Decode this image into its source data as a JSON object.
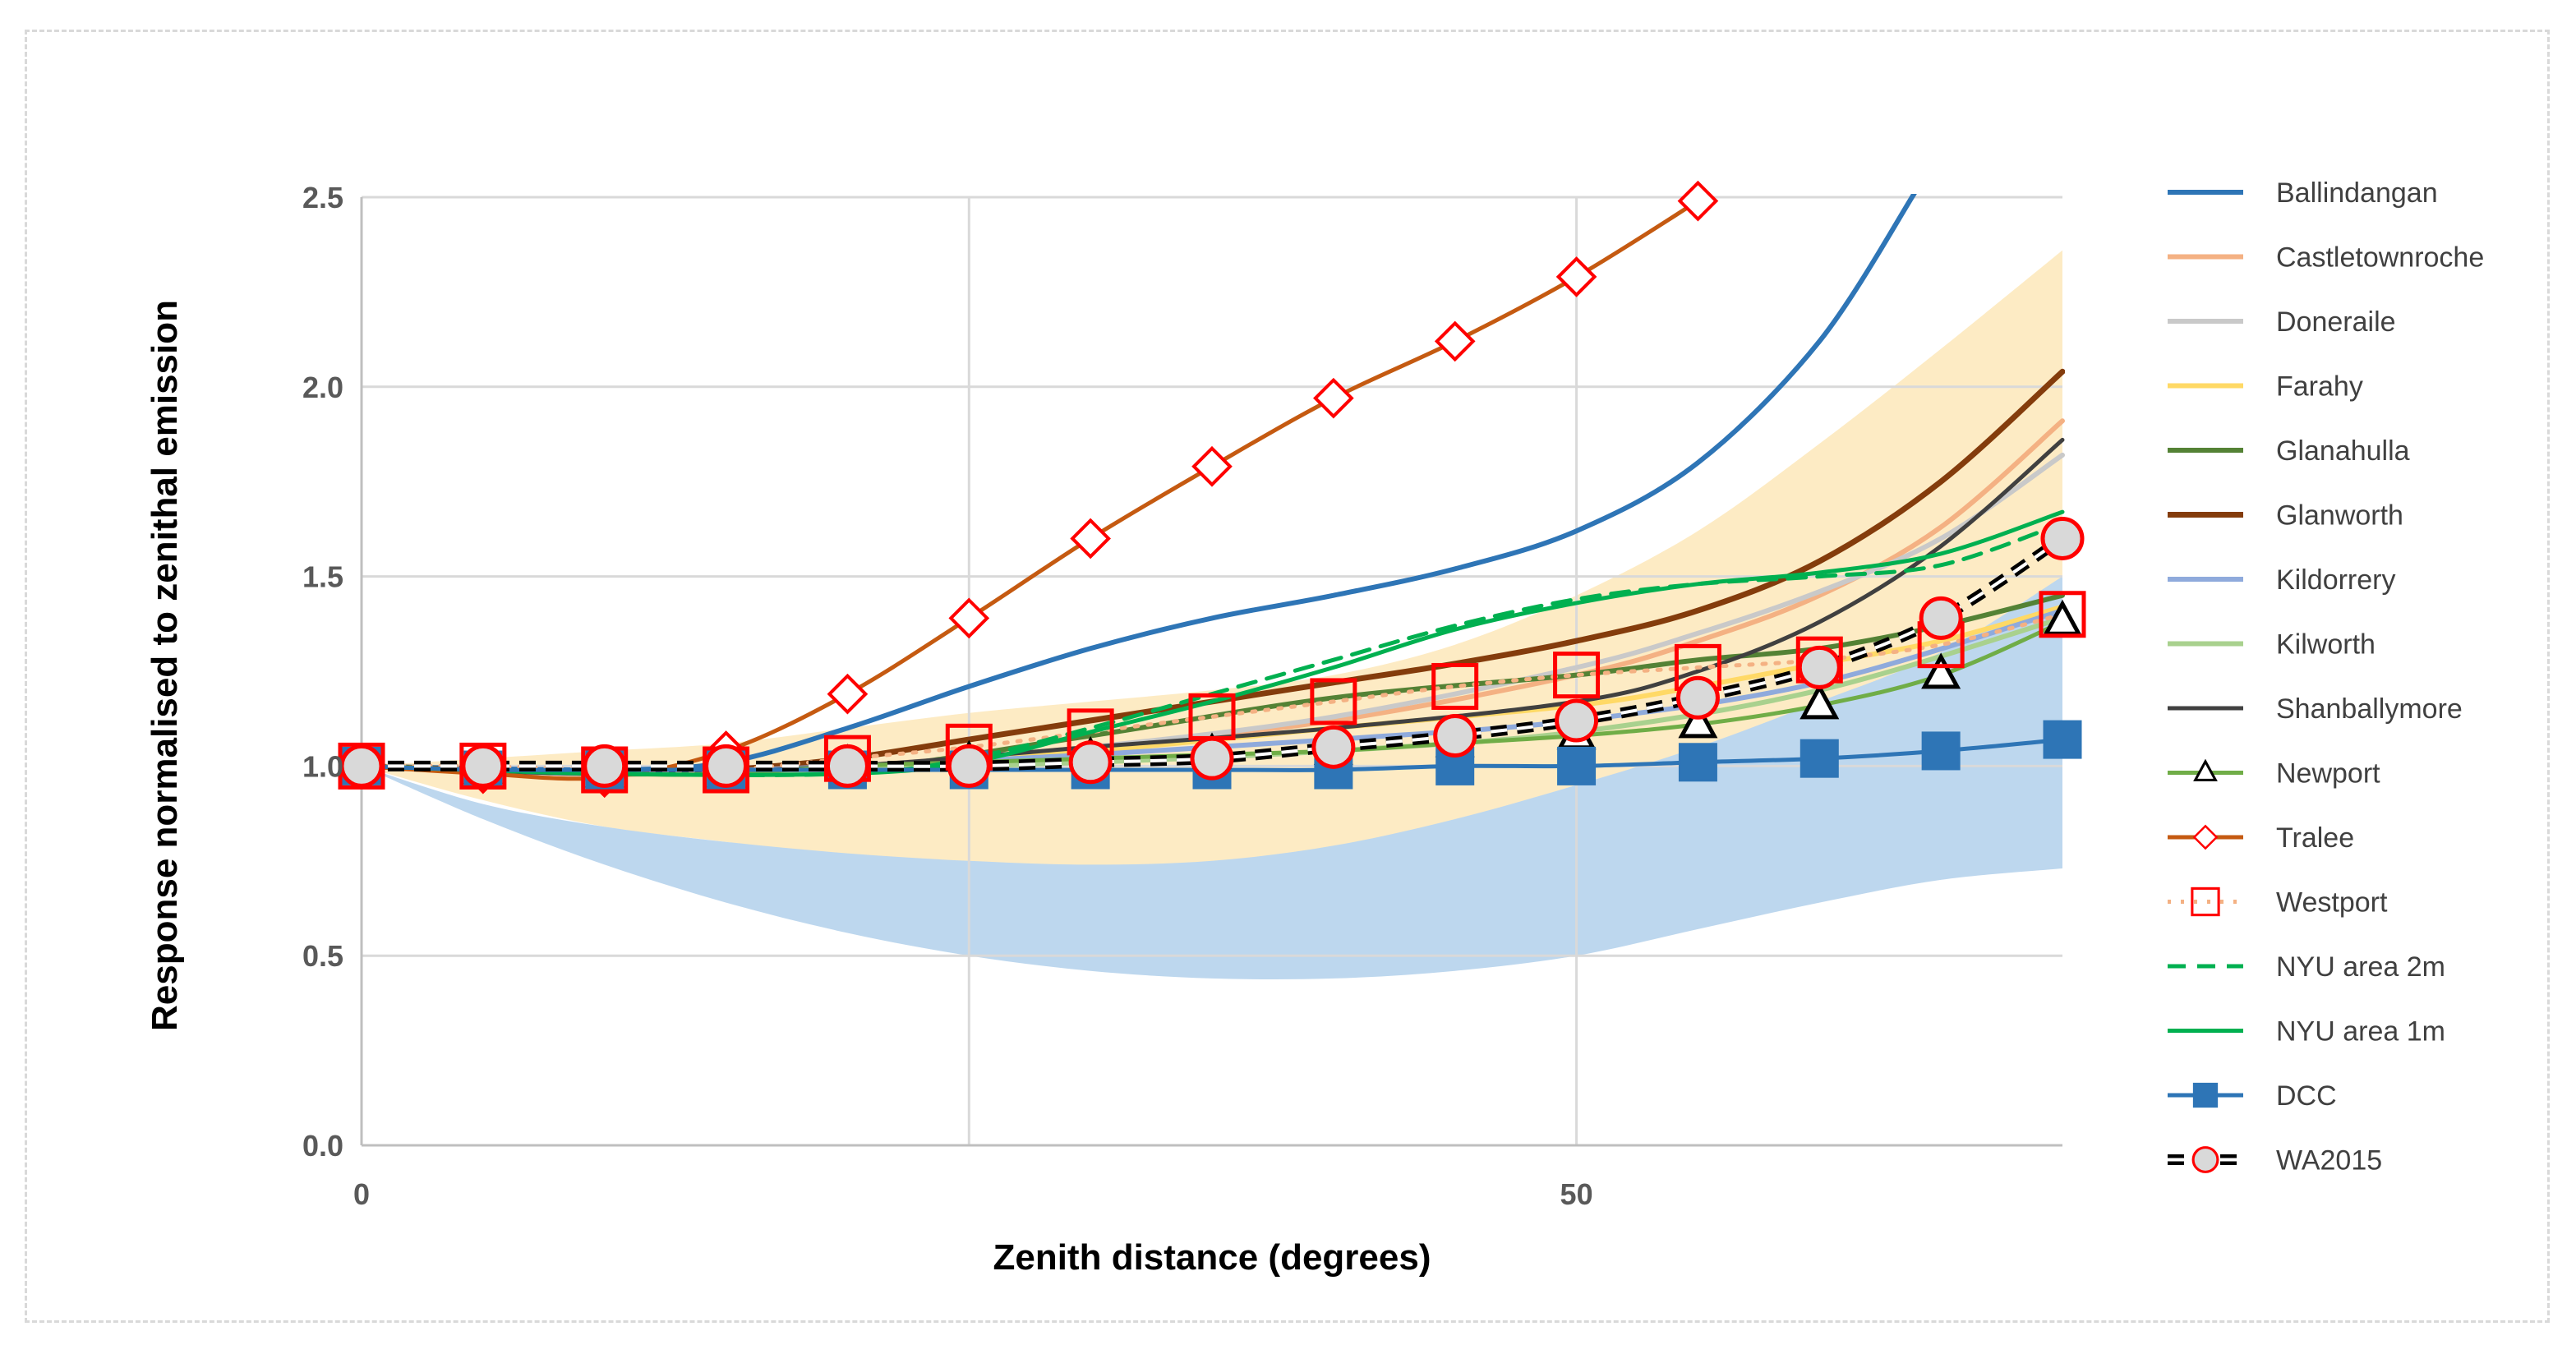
{
  "chart_data": {
    "type": "line",
    "title": "",
    "xlabel": "Zenith distance (degrees)",
    "ylabel": "Response normalised to zenithal emission",
    "xlim": [
      0,
      70
    ],
    "ylim": [
      0,
      2.5
    ],
    "x_ticks": [
      0,
      50
    ],
    "y_ticks": [
      0.0,
      0.5,
      1.0,
      1.5,
      2.0,
      2.5
    ],
    "x_tick_labels": [
      "0",
      "50"
    ],
    "y_tick_labels": [
      "0.0",
      "0.5",
      "1.0",
      "1.5",
      "2.0",
      "2.5"
    ],
    "grid": true,
    "legend_position": "right",
    "bands": [
      {
        "name": "yellow-band",
        "color": "#fdebc4",
        "x": [
          0,
          5,
          10,
          15,
          20,
          25,
          30,
          35,
          40,
          45,
          50,
          55,
          60,
          65,
          70
        ],
        "upper": [
          1.0,
          1.02,
          1.04,
          1.06,
          1.1,
          1.14,
          1.17,
          1.2,
          1.24,
          1.32,
          1.45,
          1.62,
          1.85,
          2.1,
          2.36
        ],
        "lower": [
          1.0,
          0.91,
          0.84,
          0.8,
          0.76,
          0.74,
          0.73,
          0.74,
          0.78,
          0.85,
          0.95,
          1.04,
          1.12,
          1.22,
          1.34
        ]
      },
      {
        "name": "blue-band",
        "color": "#bdd7ee",
        "x": [
          0,
          5,
          10,
          15,
          20,
          25,
          30,
          35,
          40,
          45,
          50,
          55,
          60,
          65,
          70
        ],
        "upper": [
          1.0,
          0.9,
          0.84,
          0.8,
          0.77,
          0.75,
          0.74,
          0.75,
          0.79,
          0.86,
          0.95,
          1.05,
          1.17,
          1.3,
          1.5
        ],
        "lower": [
          1.0,
          0.86,
          0.74,
          0.64,
          0.56,
          0.5,
          0.46,
          0.44,
          0.44,
          0.46,
          0.5,
          0.57,
          0.64,
          0.7,
          0.73
        ]
      }
    ],
    "series": [
      {
        "name": "Ballindangan",
        "color": "#2e75b6",
        "width": 6,
        "dash": "",
        "marker": "none",
        "x": [
          0,
          10,
          15,
          20,
          25,
          30,
          35,
          40,
          45,
          50,
          55,
          60,
          64
        ],
        "values": [
          1.0,
          0.99,
          1.01,
          1.1,
          1.21,
          1.31,
          1.39,
          1.45,
          1.52,
          1.62,
          1.8,
          2.12,
          2.52
        ]
      },
      {
        "name": "Castletownroche",
        "color": "#f4b183",
        "width": 6,
        "dash": "",
        "marker": "none",
        "x": [
          0,
          10,
          20,
          30,
          40,
          50,
          55,
          60,
          65,
          70
        ],
        "values": [
          1.0,
          0.98,
          1.0,
          1.05,
          1.12,
          1.24,
          1.33,
          1.45,
          1.63,
          1.91
        ]
      },
      {
        "name": "Doneraile",
        "color": "#c9c9c9",
        "width": 6,
        "dash": "",
        "marker": "none",
        "x": [
          0,
          10,
          20,
          30,
          40,
          50,
          55,
          60,
          65,
          70
        ],
        "values": [
          1.0,
          0.98,
          1.0,
          1.05,
          1.13,
          1.26,
          1.35,
          1.46,
          1.6,
          1.82
        ]
      },
      {
        "name": "Farahy",
        "color": "#ffd966",
        "width": 6,
        "dash": "",
        "marker": "none",
        "x": [
          0,
          10,
          20,
          30,
          40,
          50,
          55,
          60,
          65,
          70
        ],
        "values": [
          1.0,
          0.98,
          1.0,
          1.04,
          1.1,
          1.16,
          1.21,
          1.27,
          1.33,
          1.42
        ]
      },
      {
        "name": "Glanahulla",
        "color": "#548235",
        "width": 6,
        "dash": "",
        "marker": "none",
        "x": [
          0,
          10,
          20,
          30,
          40,
          50,
          55,
          60,
          65,
          70
        ],
        "values": [
          1.0,
          0.98,
          0.99,
          1.08,
          1.18,
          1.24,
          1.28,
          1.31,
          1.37,
          1.45
        ]
      },
      {
        "name": "Glanworth",
        "color": "#843c0c",
        "width": 7,
        "dash": "",
        "marker": "none",
        "x": [
          0,
          10,
          15,
          20,
          25,
          30,
          35,
          40,
          45,
          50,
          55,
          60,
          65,
          70
        ],
        "values": [
          1.0,
          0.98,
          0.99,
          1.02,
          1.07,
          1.12,
          1.17,
          1.22,
          1.27,
          1.33,
          1.41,
          1.54,
          1.75,
          2.04
        ]
      },
      {
        "name": "Kildorrery",
        "color": "#8faadc",
        "width": 6,
        "dash": "",
        "marker": "none",
        "x": [
          0,
          10,
          20,
          30,
          40,
          50,
          60,
          70
        ],
        "values": [
          1.0,
          0.98,
          1.0,
          1.03,
          1.07,
          1.12,
          1.22,
          1.41
        ]
      },
      {
        "name": "Kilworth",
        "color": "#a9d18e",
        "width": 6,
        "dash": "",
        "marker": "none",
        "x": [
          0,
          10,
          20,
          30,
          40,
          50,
          60,
          70
        ],
        "values": [
          1.0,
          0.98,
          0.99,
          1.01,
          1.04,
          1.09,
          1.2,
          1.39
        ]
      },
      {
        "name": "Shanballymore",
        "color": "#404040",
        "width": 5,
        "dash": "",
        "marker": "none",
        "x": [
          0,
          10,
          20,
          30,
          40,
          50,
          55,
          60,
          65,
          70
        ],
        "values": [
          1.0,
          0.98,
          1.0,
          1.05,
          1.1,
          1.17,
          1.25,
          1.38,
          1.58,
          1.86
        ]
      },
      {
        "name": "Newport",
        "color": "#70ad47",
        "width": 5,
        "dash": "",
        "marker": "triangle",
        "x": [
          0,
          5,
          10,
          15,
          20,
          25,
          30,
          35,
          40,
          45,
          50,
          55,
          60,
          65,
          70
        ],
        "values": [
          1.0,
          0.99,
          0.98,
          0.98,
          1.0,
          1.01,
          1.02,
          1.03,
          1.04,
          1.06,
          1.08,
          1.11,
          1.16,
          1.24,
          1.38
        ]
      },
      {
        "name": "Tralee",
        "color": "#c55a11",
        "width": 5,
        "dash": "",
        "marker": "diamond",
        "x": [
          0,
          5,
          10,
          15,
          20,
          25,
          30,
          35,
          40,
          45,
          50,
          55
        ],
        "values": [
          1.0,
          0.98,
          0.97,
          1.04,
          1.19,
          1.39,
          1.6,
          1.79,
          1.97,
          2.12,
          2.29,
          2.49
        ]
      },
      {
        "name": "Westport",
        "color": "#f4b183",
        "width": 5,
        "dash": "4,12",
        "marker": "square-open",
        "x": [
          0,
          5,
          10,
          15,
          20,
          25,
          30,
          35,
          40,
          45,
          50,
          55,
          60,
          65,
          70
        ],
        "values": [
          1.0,
          1.0,
          0.99,
          0.99,
          1.02,
          1.05,
          1.09,
          1.13,
          1.17,
          1.21,
          1.24,
          1.26,
          1.28,
          1.32,
          1.4
        ]
      },
      {
        "name": "NYU area 2m",
        "color": "#00b050",
        "width": 5,
        "dash": "22,14",
        "marker": "none",
        "x": [
          0,
          10,
          20,
          25,
          30,
          35,
          40,
          45,
          50,
          55,
          60,
          65,
          70
        ],
        "values": [
          1.0,
          0.98,
          0.98,
          1.02,
          1.1,
          1.19,
          1.28,
          1.37,
          1.44,
          1.48,
          1.5,
          1.53,
          1.64
        ]
      },
      {
        "name": "NYU area 1m",
        "color": "#00b050",
        "width": 5,
        "dash": "",
        "marker": "none",
        "x": [
          0,
          10,
          20,
          25,
          30,
          35,
          40,
          45,
          50,
          55,
          60,
          65,
          70
        ],
        "values": [
          1.0,
          0.98,
          0.98,
          1.01,
          1.09,
          1.17,
          1.26,
          1.36,
          1.43,
          1.48,
          1.51,
          1.56,
          1.67
        ]
      },
      {
        "name": "DCC",
        "color": "#2e75b6",
        "width": 5,
        "dash": "",
        "marker": "square-filled",
        "x": [
          0,
          5,
          10,
          15,
          20,
          25,
          30,
          35,
          40,
          45,
          50,
          55,
          60,
          65,
          70
        ],
        "values": [
          1.0,
          0.99,
          0.99,
          0.99,
          0.99,
          0.99,
          0.99,
          0.99,
          0.99,
          1.0,
          1.0,
          1.01,
          1.02,
          1.04,
          1.07
        ]
      },
      {
        "name": "WA2015",
        "color": "#000000",
        "width": 5,
        "dash": "20,12",
        "marker": "circle-red",
        "x": [
          0,
          5,
          10,
          15,
          20,
          25,
          30,
          35,
          40,
          45,
          50,
          55,
          60,
          65,
          70
        ],
        "values": [
          1.0,
          1.0,
          1.0,
          1.0,
          1.0,
          1.0,
          1.01,
          1.02,
          1.05,
          1.08,
          1.12,
          1.18,
          1.26,
          1.39,
          1.6
        ]
      }
    ]
  }
}
